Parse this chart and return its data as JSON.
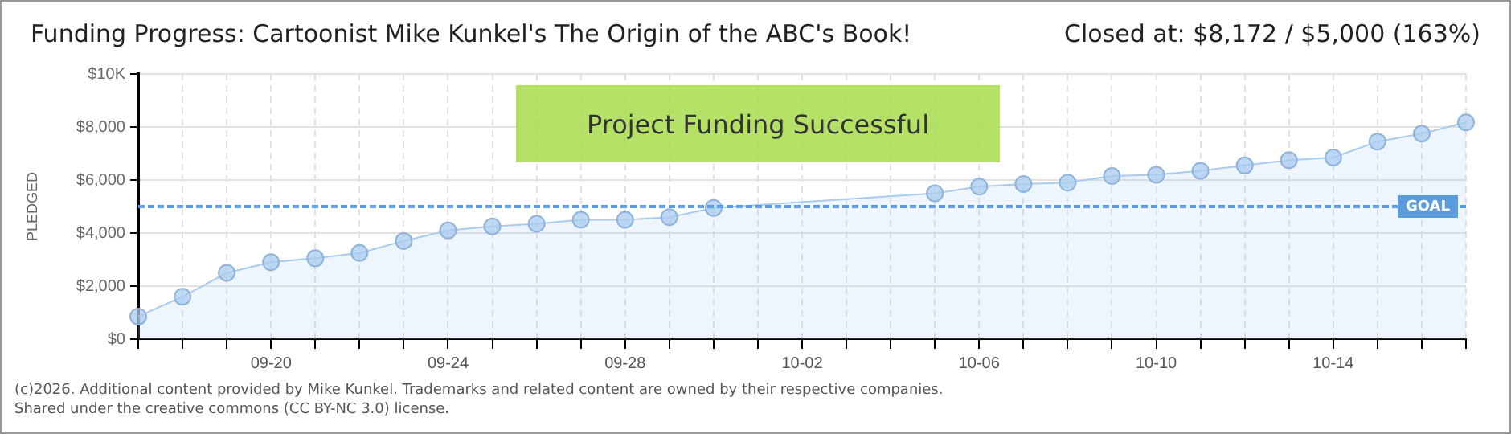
{
  "chart_data": {
    "type": "area",
    "title": "Funding Progress: Cartoonist Mike Kunkel's The Origin of the ABC's Book!",
    "subtitle": "Closed at: $8,172 / $5,000 (163%)",
    "ylabel": "PLEDGED",
    "categories": [
      null,
      null,
      null,
      "09-20",
      null,
      null,
      null,
      "09-24",
      null,
      null,
      null,
      "09-28",
      null,
      null,
      null,
      "10-02",
      null,
      null,
      null,
      "10-06",
      null,
      null,
      null,
      "10-10",
      null,
      null,
      null,
      "10-14",
      null,
      null,
      null
    ],
    "series": [
      {
        "color": "#a9cbef",
        "values": [
          850,
          1600,
          2500,
          2900,
          3050,
          3250,
          3700,
          4100,
          4250,
          4350,
          4500,
          4500,
          4600,
          4950,
          null,
          null,
          null,
          null,
          5500,
          5750,
          5850,
          5900,
          6150,
          6200,
          6350,
          6550,
          6750,
          6850,
          7450,
          7750,
          8172
        ]
      }
    ],
    "ylim": [
      0,
      10000
    ],
    "yticks": [
      {
        "value": 0,
        "label": "$0"
      },
      {
        "value": 2000,
        "label": "$2,000"
      },
      {
        "value": 4000,
        "label": "$4,000"
      },
      {
        "value": 6000,
        "label": "$6,000"
      },
      {
        "value": 8000,
        "label": "$8,000"
      },
      {
        "value": 10000,
        "label": "$10K"
      }
    ],
    "ref_lines": [
      {
        "axis": "y",
        "value": 5000,
        "label": "GOAL",
        "color": "#5b9bdc",
        "line_style": "dashed"
      }
    ],
    "annotations": [
      "Project Funding Successful",
      "(c)2026. Additional content provided by Mike Kunkel. Trademarks and related content are owned by their respective companies.",
      "Shared under the creative commons (CC BY-NC 3.0) license."
    ],
    "grid": true,
    "marker": "circle",
    "legend": false
  }
}
